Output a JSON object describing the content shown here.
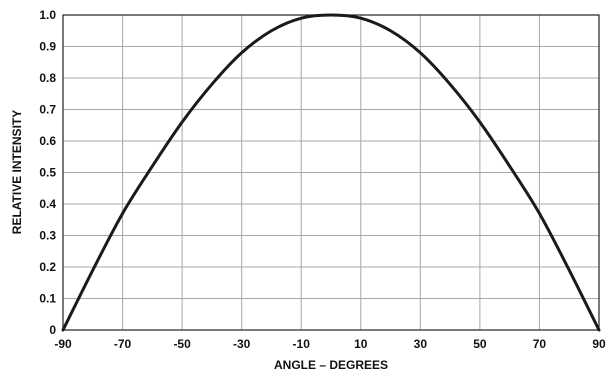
{
  "chart_data": {
    "type": "line",
    "title": "",
    "xlabel": "ANGLE – DEGREES",
    "ylabel": "RELATIVE INTENSITY",
    "xlim": [
      -90,
      90
    ],
    "ylim": [
      0,
      1.0
    ],
    "grid": true,
    "x_ticks": [
      -90,
      -70,
      -50,
      -30,
      -10,
      10,
      30,
      50,
      70,
      90
    ],
    "x_tick_labels": [
      "-90",
      "-70",
      "-50",
      "-30",
      "-10",
      "10",
      "30",
      "50",
      "70",
      "90"
    ],
    "y_ticks": [
      0,
      0.1,
      0.2,
      0.3,
      0.4,
      0.5,
      0.6,
      0.7,
      0.8,
      0.9,
      1.0
    ],
    "y_tick_labels": [
      "0",
      "0.1",
      "0.2",
      "0.3",
      "0.4",
      "0.5",
      "0.6",
      "0.7",
      "0.8",
      "0.9",
      "1.0"
    ],
    "series": [
      {
        "color": "#1a1a1a",
        "x": [
          -90,
          -80,
          -70,
          -60,
          -50,
          -40,
          -30,
          -20,
          -10,
          0,
          10,
          20,
          30,
          40,
          50,
          60,
          70,
          80,
          90
        ],
        "y": [
          0.0,
          0.19,
          0.37,
          0.52,
          0.66,
          0.78,
          0.88,
          0.95,
          0.99,
          1.0,
          0.99,
          0.95,
          0.88,
          0.78,
          0.66,
          0.52,
          0.37,
          0.19,
          0.0
        ]
      }
    ]
  }
}
